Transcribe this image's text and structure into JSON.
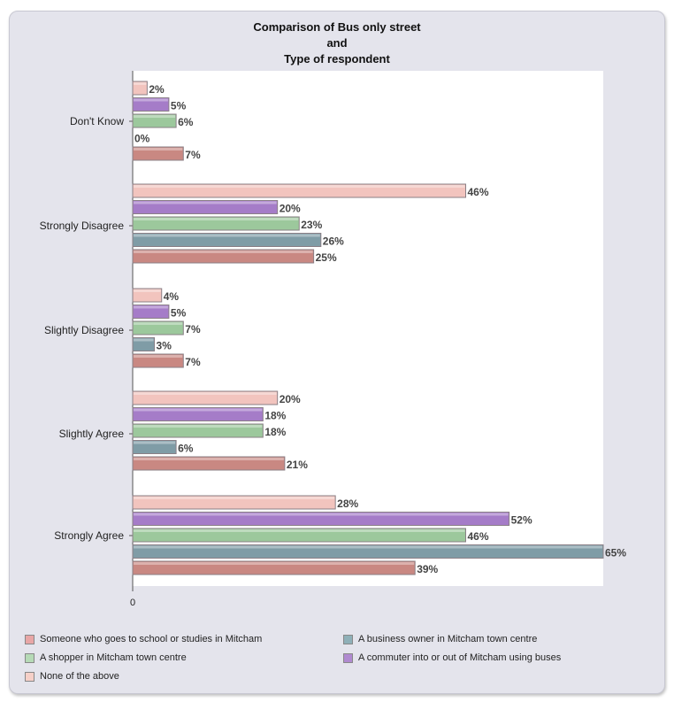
{
  "chart_data": {
    "type": "bar",
    "orientation": "horizontal",
    "title": [
      "Comparison of Bus only street",
      "and",
      "Type of respondent"
    ],
    "categories": [
      "Don't Know",
      "Strongly Disagree",
      "Slightly Disagree",
      "Slightly Agree",
      "Strongly Agree"
    ],
    "x_tick_labels": [
      "0"
    ],
    "xlim": [
      0,
      65
    ],
    "grid": false,
    "legend_position": "bottom",
    "value_suffix": "%",
    "series": [
      {
        "name": "None of the above",
        "color": "#f2c4be",
        "values": [
          2,
          46,
          4,
          20,
          28
        ]
      },
      {
        "name": "A commuter into or out of Mitcham using buses",
        "color": "#a57cc8",
        "values": [
          5,
          20,
          5,
          18,
          52
        ]
      },
      {
        "name": "A shopper in Mitcham town centre",
        "color": "#9cc89c",
        "values": [
          6,
          23,
          7,
          18,
          46
        ]
      },
      {
        "name": "A business owner in Mitcham town centre",
        "color": "#7f9ca6",
        "values": [
          0,
          26,
          3,
          6,
          65
        ]
      },
      {
        "name": "Someone who goes to school or studies in Mitcham",
        "color": "#c98882",
        "values": [
          7,
          25,
          7,
          21,
          39
        ]
      }
    ]
  },
  "legend": {
    "items": [
      {
        "label": "Someone who goes to school or studies in Mitcham",
        "color": "#e8a6a6"
      },
      {
        "label": "A business owner in Mitcham town centre",
        "color": "#8fb0b8"
      },
      {
        "label": "A shopper in Mitcham town centre",
        "color": "#b6dab6"
      },
      {
        "label": "A commuter into or out of Mitcham using buses",
        "color": "#b08ad0"
      },
      {
        "label": "None of the above",
        "color": "#f6d0c8"
      }
    ]
  }
}
